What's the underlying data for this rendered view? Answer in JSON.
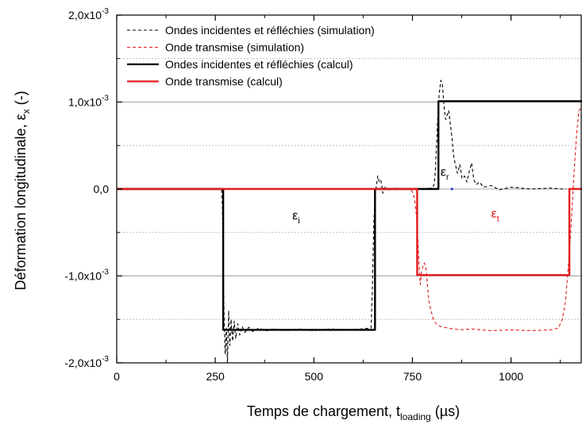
{
  "chart_data": {
    "type": "line",
    "xlabel": {
      "main": "Temps de chargement, t",
      "sub": "loading",
      "unit": " (µs)"
    },
    "ylabel": {
      "main": "Déformation longitudinale, ε",
      "sub": "x",
      "unit": " (-)"
    },
    "xlim": [
      0,
      1180
    ],
    "ylim": [
      -0.002,
      0.002
    ],
    "x_ticks": [
      {
        "value": 0,
        "label": "0"
      },
      {
        "value": 250,
        "label": "250"
      },
      {
        "value": 500,
        "label": "500"
      },
      {
        "value": 750,
        "label": "750"
      },
      {
        "value": 1000,
        "label": "1000"
      }
    ],
    "y_ticks": [
      {
        "value": 0.002,
        "label": "2,0x10",
        "exp": "-3"
      },
      {
        "value": 0.001,
        "label": "1,0x10",
        "exp": "-3"
      },
      {
        "value": 0.0,
        "label": "0,0",
        "exp": ""
      },
      {
        "value": -0.001,
        "label": "-1,0x10",
        "exp": "-3"
      },
      {
        "value": -0.002,
        "label": "-2,0x10",
        "exp": "-3"
      }
    ],
    "grid": {
      "major_y": [
        0.001,
        0.0,
        -0.001
      ],
      "minor_y": [
        0.0015,
        0.0005,
        -0.0005,
        -0.0015
      ]
    },
    "legend_position": "top-left",
    "series": [
      {
        "name": "Ondes incidentes et réfléchies (simulation)",
        "color": "#000000",
        "style": "dashed",
        "points": [
          [
            0,
            0
          ],
          [
            266,
            0
          ],
          [
            268,
            -0.0002
          ],
          [
            270,
            -0.0008
          ],
          [
            272,
            -0.0014
          ],
          [
            275,
            -0.0019
          ],
          [
            278,
            -0.0016
          ],
          [
            281,
            -0.002
          ],
          [
            284,
            -0.0014
          ],
          [
            287,
            -0.0018
          ],
          [
            290,
            -0.0015
          ],
          [
            294,
            -0.00175
          ],
          [
            298,
            -0.00152
          ],
          [
            302,
            -0.00172
          ],
          [
            307,
            -0.00155
          ],
          [
            312,
            -0.00168
          ],
          [
            318,
            -0.00158
          ],
          [
            325,
            -0.00165
          ],
          [
            335,
            -0.00159
          ],
          [
            345,
            -0.00164
          ],
          [
            360,
            -0.0016
          ],
          [
            380,
            -0.00163
          ],
          [
            400,
            -0.00161
          ],
          [
            430,
            -0.00163
          ],
          [
            460,
            -0.00161
          ],
          [
            500,
            -0.00163
          ],
          [
            540,
            -0.00161
          ],
          [
            580,
            -0.00162
          ],
          [
            620,
            -0.00161
          ],
          [
            645,
            -0.0016
          ],
          [
            648,
            -0.0012
          ],
          [
            650,
            -0.0008
          ],
          [
            652,
            -0.0004
          ],
          [
            655,
            -0.0001
          ],
          [
            658,
            2e-05
          ],
          [
            662,
            0.00015
          ],
          [
            666,
            8e-05
          ],
          [
            670,
            0.0001
          ],
          [
            675,
            -5e-05
          ],
          [
            680,
            3e-05
          ],
          [
            690,
            -2e-05
          ],
          [
            700,
            1e-05
          ],
          [
            730,
            0.0
          ],
          [
            770,
            0.0
          ],
          [
            800,
            1e-05
          ],
          [
            805,
            5e-05
          ],
          [
            808,
            0.0002
          ],
          [
            811,
            0.0005
          ],
          [
            814,
            0.0008
          ],
          [
            818,
            0.0011
          ],
          [
            822,
            0.00125
          ],
          [
            826,
            0.0012
          ],
          [
            830,
            0.00095
          ],
          [
            834,
            0.0008
          ],
          [
            838,
            0.00085
          ],
          [
            842,
            0.0009
          ],
          [
            846,
            0.00075
          ],
          [
            850,
            0.0006
          ],
          [
            854,
            0.0004
          ],
          [
            858,
            0.0003
          ],
          [
            864,
            0.00018
          ],
          [
            870,
            0.00028
          ],
          [
            876,
            0.00012
          ],
          [
            882,
            0.00015
          ],
          [
            888,
            8e-05
          ],
          [
            894,
            0.0002
          ],
          [
            900,
            0.0003
          ],
          [
            906,
            0.0001
          ],
          [
            912,
            5e-05
          ],
          [
            920,
            8e-05
          ],
          [
            930,
            2e-05
          ],
          [
            950,
            4e-05
          ],
          [
            970,
            -1e-05
          ],
          [
            1000,
            2e-05
          ],
          [
            1050,
            0.0
          ],
          [
            1100,
            1e-05
          ],
          [
            1130,
            0.0
          ],
          [
            1140,
            0.0
          ]
        ]
      },
      {
        "name": "Onde transmise (simulation)",
        "color": "#e31a1c",
        "style": "dashed",
        "points": [
          [
            0,
            0
          ],
          [
            740,
            0
          ],
          [
            748,
            -2e-05
          ],
          [
            755,
            -0.0001
          ],
          [
            760,
            -0.0003
          ],
          [
            764,
            -0.0006
          ],
          [
            767,
            -0.0009
          ],
          [
            770,
            -0.0011
          ],
          [
            773,
            -0.00095
          ],
          [
            776,
            -0.0009
          ],
          [
            780,
            -0.00085
          ],
          [
            784,
            -0.0009
          ],
          [
            788,
            -0.0011
          ],
          [
            792,
            -0.0013
          ],
          [
            797,
            -0.0014
          ],
          [
            803,
            -0.0015
          ],
          [
            810,
            -0.00155
          ],
          [
            820,
            -0.00158
          ],
          [
            840,
            -0.0016
          ],
          [
            870,
            -0.00162
          ],
          [
            900,
            -0.00161
          ],
          [
            950,
            -0.00163
          ],
          [
            1000,
            -0.00162
          ],
          [
            1050,
            -0.00163
          ],
          [
            1100,
            -0.00162
          ],
          [
            1120,
            -0.0016
          ],
          [
            1130,
            -0.0015
          ],
          [
            1138,
            -0.0013
          ],
          [
            1145,
            -0.0009
          ],
          [
            1150,
            -0.0006
          ],
          [
            1155,
            -0.0002
          ],
          [
            1160,
            0.0002
          ],
          [
            1166,
            0.0006
          ],
          [
            1172,
            0.0009
          ],
          [
            1177,
            0.00093
          ]
        ]
      },
      {
        "name": "Ondes incidentes et réfléchies (calcul)",
        "color": "#000000",
        "style": "solid",
        "points": [
          [
            0,
            0
          ],
          [
            270,
            0
          ],
          [
            270,
            -0.00162
          ],
          [
            655,
            -0.00162
          ],
          [
            655,
            0
          ],
          [
            816,
            0
          ],
          [
            816,
            0.00101
          ],
          [
            1180,
            0.00101
          ]
        ]
      },
      {
        "name": "Onde transmise (calcul)",
        "color": "#e31a1c",
        "style": "solid",
        "points": [
          [
            0,
            0
          ],
          [
            762,
            0
          ],
          [
            762,
            -0.00099
          ],
          [
            1148,
            -0.00099
          ],
          [
            1148,
            0
          ],
          [
            1180,
            0
          ]
        ]
      }
    ],
    "annotations": [
      {
        "text": "ε",
        "sub": "i",
        "x": 455,
        "y": -0.00035,
        "color": "#000000"
      },
      {
        "text": "ε",
        "sub": "r",
        "x": 832,
        "y": 0.00015,
        "color": "#000000"
      },
      {
        "text": "ε",
        "sub": "t",
        "x": 960,
        "y": -0.00033,
        "color": "#e31a1c"
      }
    ]
  }
}
